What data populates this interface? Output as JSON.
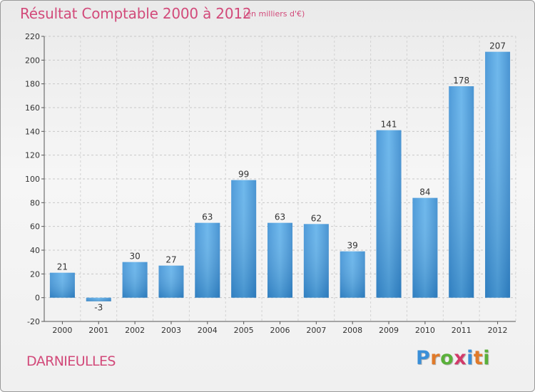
{
  "header": {
    "title": "Résultat Comptable 2000 à 2012",
    "subtitle": "(en milliers d'€)"
  },
  "footer": {
    "commune": "DARNIEULLES",
    "logo_text": "Proxiti"
  },
  "colors": {
    "title": "#d24a7a",
    "bar_top": "#5aaee8",
    "bar_bottom": "#2a78b8",
    "logo": [
      "#3a8fd8",
      "#e07a2a",
      "#5ab03a",
      "#d23a6a",
      "#3a8fd8",
      "#e07a2a",
      "#5ab03a"
    ]
  },
  "chart_data": {
    "type": "bar",
    "categories": [
      "2000",
      "2001",
      "2002",
      "2003",
      "2004",
      "2005",
      "2006",
      "2007",
      "2008",
      "2009",
      "2010",
      "2011",
      "2012"
    ],
    "values": [
      21,
      -3,
      30,
      27,
      63,
      99,
      63,
      62,
      39,
      141,
      84,
      178,
      207
    ],
    "title": "Résultat Comptable 2000 à 2012",
    "xlabel": "",
    "ylabel": "",
    "ylim": [
      -20,
      220
    ],
    "yticks": [
      -20,
      0,
      20,
      40,
      60,
      80,
      100,
      120,
      140,
      160,
      180,
      200,
      220
    ],
    "grid": true
  }
}
